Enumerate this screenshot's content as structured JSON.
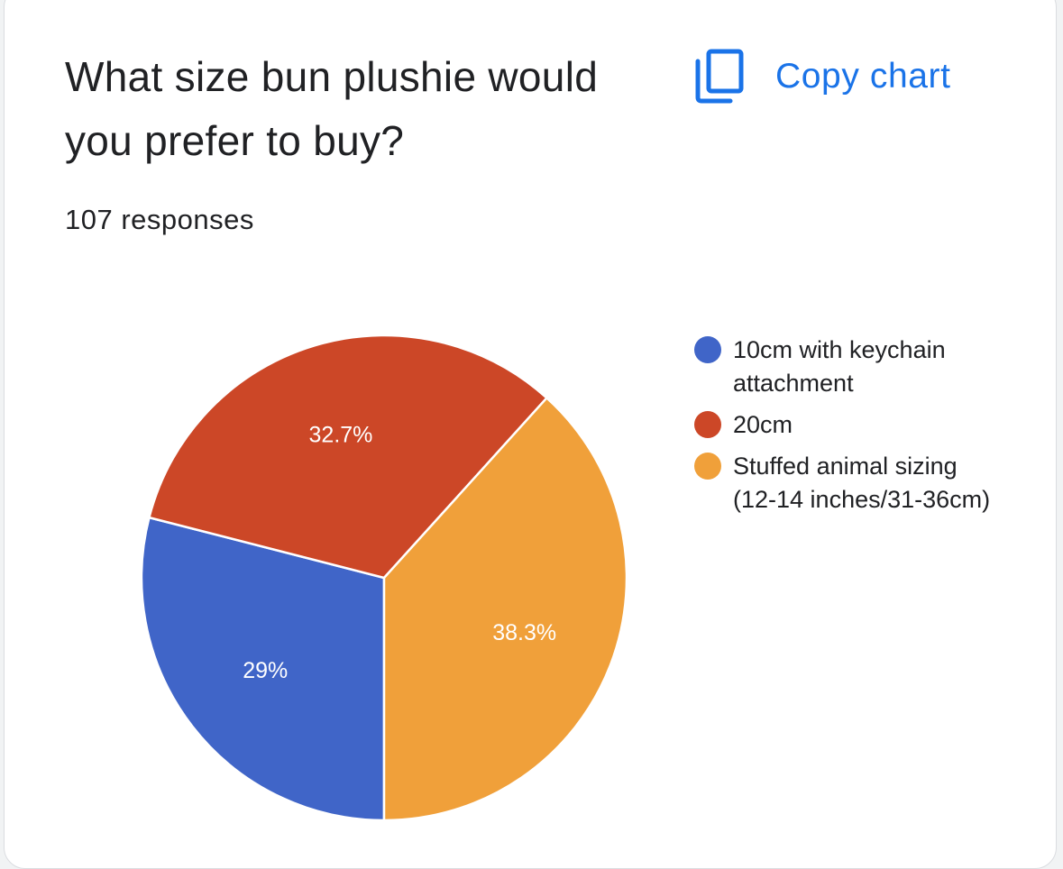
{
  "card": {
    "title": "What size bun plushie would you prefer to buy?",
    "responses": "107 responses",
    "copy_chart_label": "Copy chart",
    "copy_icon": "copy-icon"
  },
  "chart_data": {
    "type": "pie",
    "title": "What size bun plushie would you prefer to buy?",
    "subtitle": "107 responses",
    "legend_position": "right",
    "start_angle_deg": 90,
    "slices": [
      {
        "label": "10cm with keychain attachment",
        "value": 29,
        "display": "29%",
        "color": "#4065c8"
      },
      {
        "label": "20cm",
        "value": 32.7,
        "display": "32.7%",
        "color": "#cc4727"
      },
      {
        "label": "Stuffed animal sizing (12-14 inches/31-36cm)",
        "value": 38.3,
        "display": "38.3%",
        "color": "#f0a03a"
      }
    ]
  }
}
